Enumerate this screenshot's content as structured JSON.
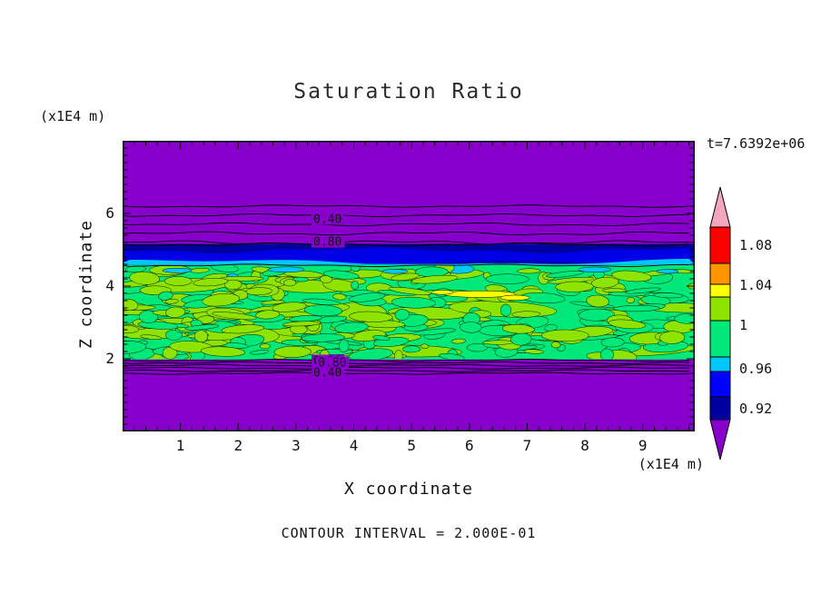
{
  "chart_data": {
    "type": "heatmap",
    "subtype": "filled contour map",
    "title": "Saturation Ratio",
    "xlabel": "X coordinate",
    "ylabel": "Z coordinate",
    "x_unit": "(x1E4 m)",
    "z_unit": "(x1E4 m)",
    "time_annotation": "t=7.6392e+06",
    "contour_interval_note": "CONTOUR INTERVAL = 2.000E-01",
    "xlim": [
      0,
      9.9
    ],
    "zlim": [
      0,
      8
    ],
    "x_ticks": [
      1,
      2,
      3,
      4,
      5,
      6,
      7,
      8,
      9
    ],
    "z_ticks": [
      2,
      4,
      6
    ],
    "grid": false,
    "legend_position": "right-colorbar",
    "colorbar": {
      "tick_labels": [
        "1.08",
        "1.04",
        "1",
        "0.96",
        "0.92"
      ],
      "segments_top_to_bottom": [
        {
          "name": "above-range",
          "color": "#F2A8BC",
          "shape": "arrow-up"
        },
        {
          "name": "red",
          "color": "#FF0000"
        },
        {
          "name": "orange",
          "color": "#FF9600"
        },
        {
          "name": "yellow",
          "color": "#FFFF00"
        },
        {
          "name": "green-yellow",
          "color": "#8FE300"
        },
        {
          "name": "spring-green",
          "color": "#00E878"
        },
        {
          "name": "cyan",
          "color": "#00C8FF"
        },
        {
          "name": "blue",
          "color": "#0000FF"
        },
        {
          "name": "navy",
          "color": "#0000A0"
        },
        {
          "name": "below-range",
          "color": "#8800CC",
          "shape": "arrow-down"
        }
      ]
    },
    "field_description": {
      "background_value_color": "#8800CC",
      "bands": [
        {
          "name": "upper-unsaturated",
          "z_range": [
            5.16,
            8
          ],
          "color": "#8800CC",
          "contour_line_levels_z": [
            6.2,
            5.95,
            5.7,
            5.45,
            5.2
          ]
        },
        {
          "name": "transition-blue",
          "z_range": [
            4.58,
            5.16
          ],
          "colors": [
            "#0000A0",
            "#0000E6",
            "#00C8FF"
          ]
        },
        {
          "name": "saturated-mottled",
          "z_range": [
            1.98,
            4.58
          ],
          "colors": [
            "#00E878",
            "#8FE300",
            "#FFFF00",
            "#00C8FF"
          ]
        },
        {
          "name": "lower-transition-lines",
          "z_range": [
            1.55,
            1.98
          ]
        },
        {
          "name": "lower-unsaturated",
          "z_range": [
            0,
            1.55
          ],
          "color": "#8800CC"
        }
      ],
      "contour_labels": [
        {
          "text": "0.40",
          "x": 3.3,
          "z": 5.85
        },
        {
          "text": "0.80",
          "x": 3.3,
          "z": 5.22
        },
        {
          "text": "0.20",
          "x": 3.3,
          "z": 1.95
        },
        {
          "text": "0.80",
          "x": 3.38,
          "z": 1.9
        },
        {
          "text": "0.40",
          "x": 3.3,
          "z": 1.62
        }
      ]
    }
  }
}
